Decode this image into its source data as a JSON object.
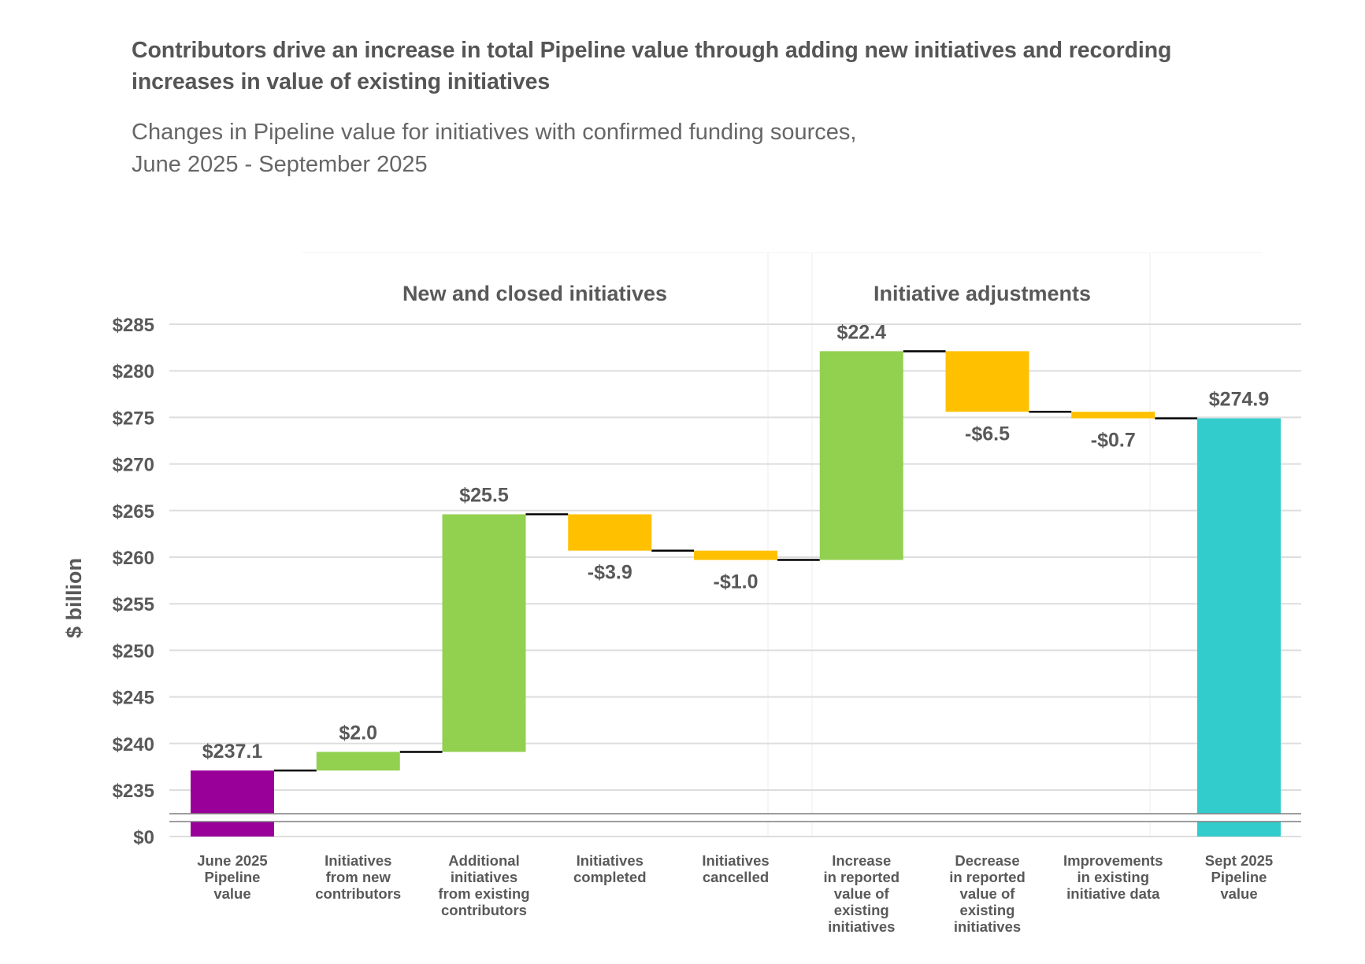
{
  "title": "Contributors drive an increase in total Pipeline value through adding new initiatives and recording increases in value of existing initiatives",
  "subtitle_line1": "Changes in Pipeline value for initiatives with confirmed funding sources,",
  "subtitle_line2": "June 2025 - September 2025",
  "colors": {
    "start": "#990099",
    "increase": "#92D050",
    "decrease": "#FFC000",
    "end": "#33CCCC",
    "connector": "#000000",
    "grid": "#dddddd",
    "text": "#595959"
  },
  "chart_data": {
    "type": "bar",
    "subtype": "waterfall",
    "title": "Contributors drive an increase in total Pipeline value through adding new initiatives and recording increases in value of existing initiatives",
    "subtitle": "Changes in Pipeline value for initiatives with confirmed funding sources, June 2025 - September 2025",
    "xlabel": "",
    "ylabel": "$ billion",
    "ylim": [
      235,
      285
    ],
    "y_axis_break": true,
    "y_ticks": [
      "$0",
      "$235",
      "$240",
      "$245",
      "$250",
      "$255",
      "$260",
      "$265",
      "$270",
      "$275",
      "$280",
      "$285"
    ],
    "y_tick_values": [
      0,
      235,
      240,
      245,
      250,
      255,
      260,
      265,
      270,
      275,
      280,
      285
    ],
    "grid": true,
    "groups": [
      {
        "label": "New and closed initiatives",
        "from": 1,
        "to": 4
      },
      {
        "label": "Initiative adjustments",
        "from": 5,
        "to": 7
      }
    ],
    "categories": [
      [
        "June 2025",
        "Pipeline",
        "value"
      ],
      [
        "Initiatives",
        "from new",
        "contributors"
      ],
      [
        "Additional",
        "initiatives",
        "from existing",
        "contributors"
      ],
      [
        "Initiatives",
        "completed"
      ],
      [
        "Initiatives",
        "cancelled"
      ],
      [
        "Increase",
        "in reported",
        "value of",
        "existing",
        "initiatives"
      ],
      [
        "Decrease",
        "in reported",
        "value of",
        "existing",
        "initiatives"
      ],
      [
        "Improvements",
        "in existing",
        "initiative data"
      ],
      [
        "Sept 2025",
        "Pipeline",
        "value"
      ]
    ],
    "values": [
      237.1,
      2.0,
      25.5,
      -3.9,
      -1.0,
      22.4,
      -6.5,
      -0.7,
      274.9
    ],
    "kinds": [
      "start",
      "increase",
      "increase",
      "decrease",
      "decrease",
      "increase",
      "decrease",
      "decrease",
      "end"
    ],
    "data_labels": [
      "$237.1",
      "$2.0",
      "$25.5",
      "-$3.9",
      "-$1.0",
      "$22.4",
      "-$6.5",
      "-$0.7",
      "$274.9"
    ]
  }
}
